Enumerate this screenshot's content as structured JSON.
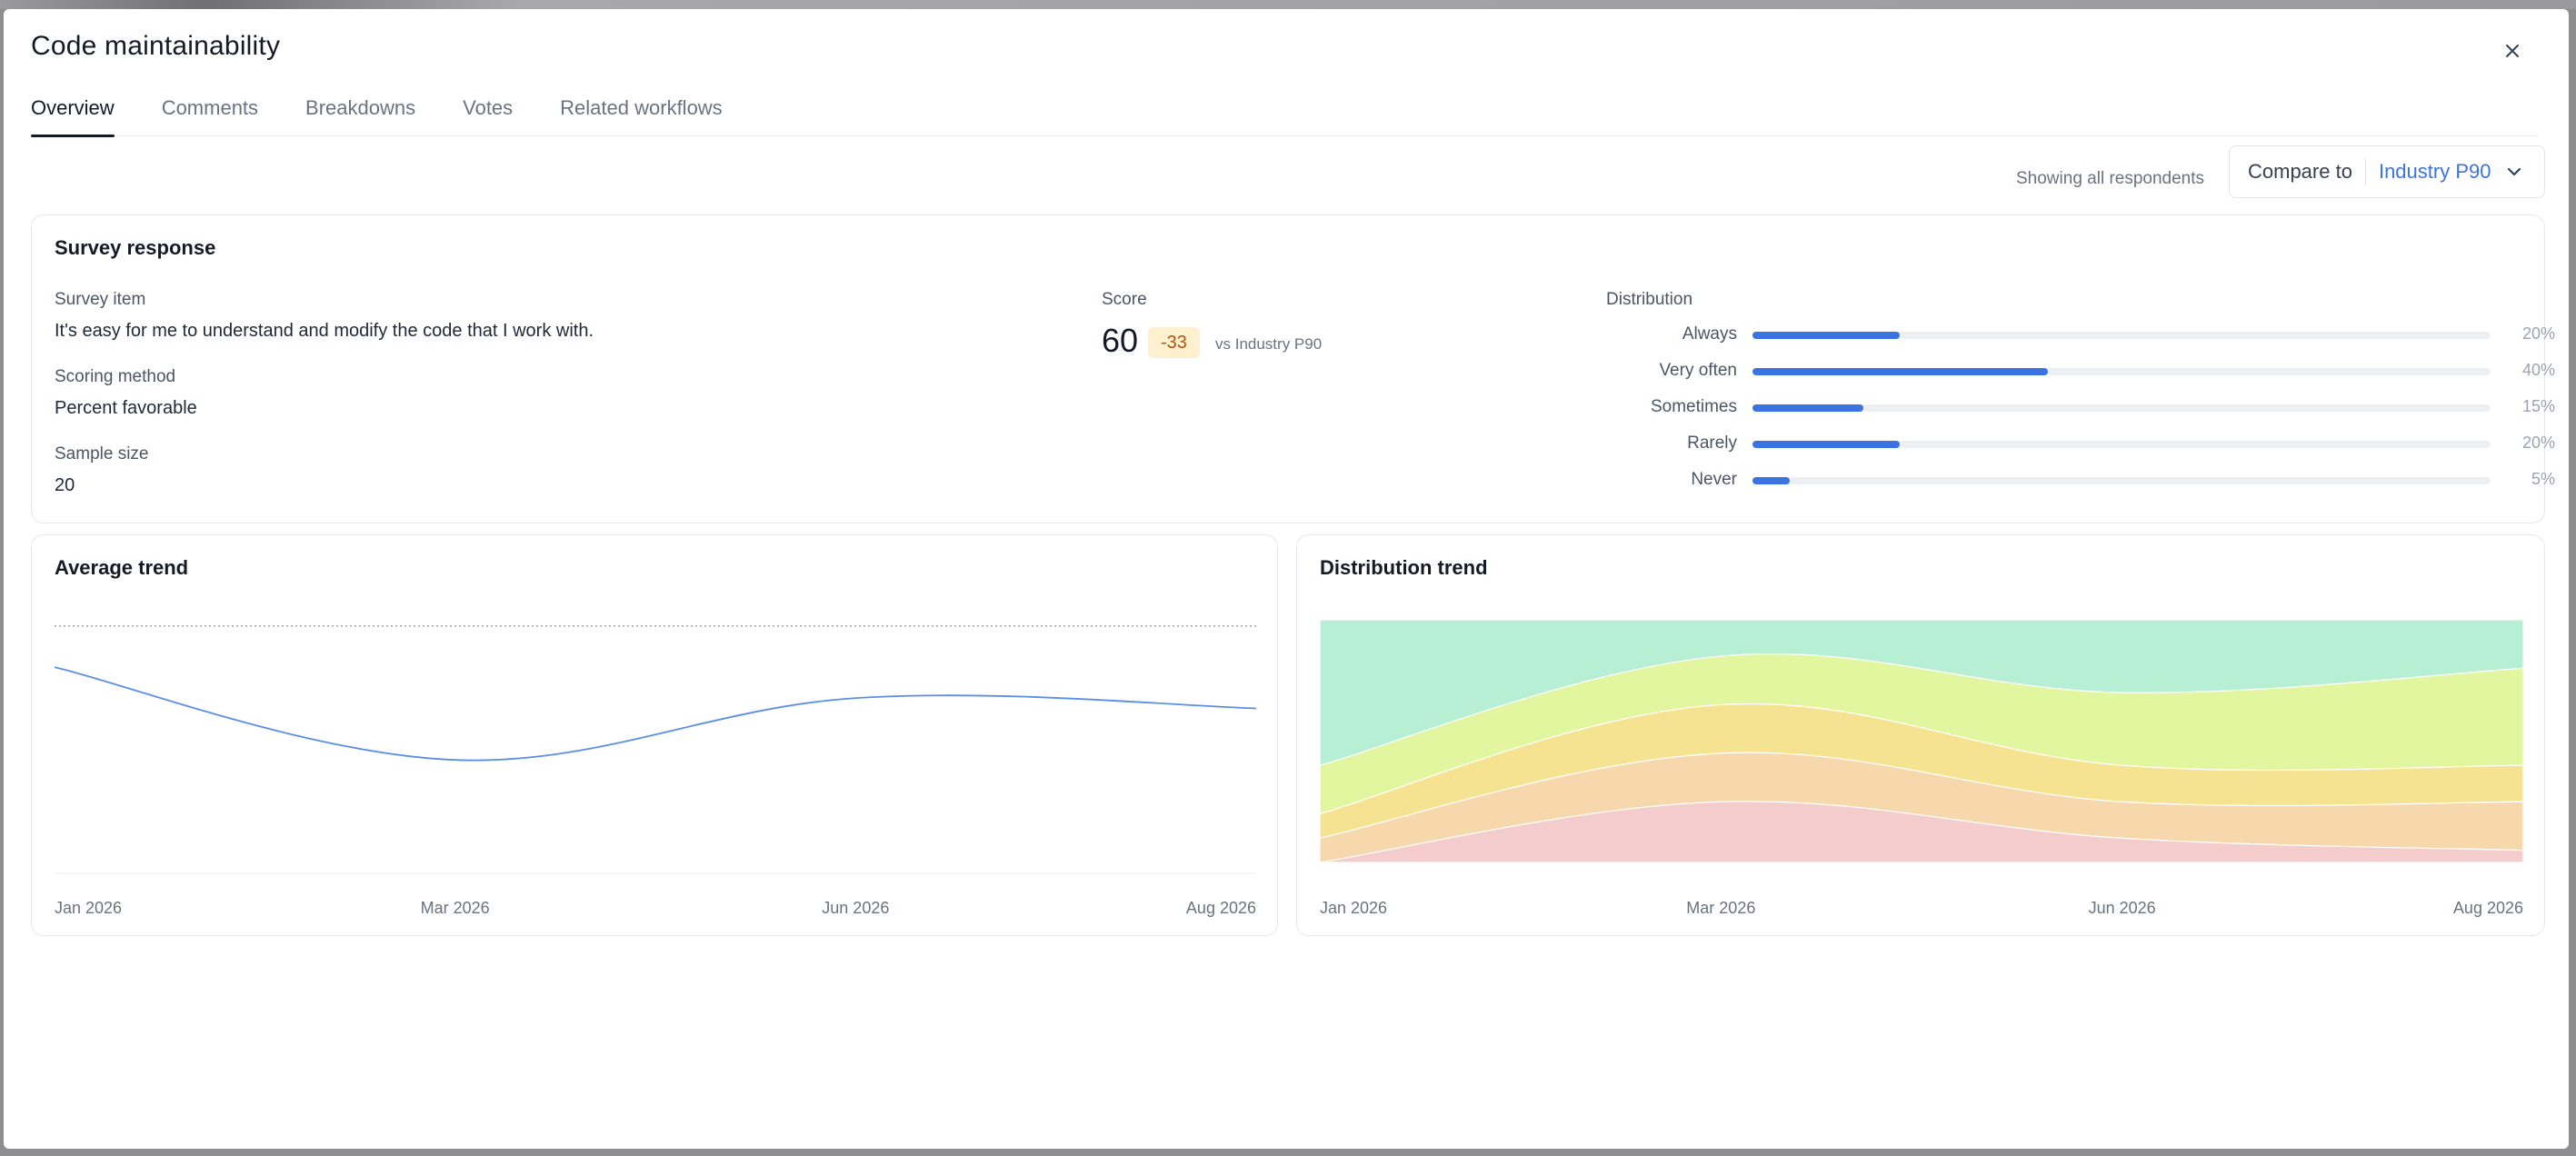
{
  "modal": {
    "title": "Code maintainability",
    "tabs": [
      {
        "label": "Overview",
        "active": true
      },
      {
        "label": "Comments",
        "active": false
      },
      {
        "label": "Breakdowns",
        "active": false
      },
      {
        "label": "Votes",
        "active": false
      },
      {
        "label": "Related workflows",
        "active": false
      }
    ],
    "respondents_text": "Showing all respondents",
    "compare": {
      "label": "Compare to",
      "value": "Industry P90"
    }
  },
  "survey_response": {
    "title": "Survey response",
    "survey_item_label": "Survey item",
    "survey_item_value": "It's easy for me to understand and modify the code that I work with.",
    "scoring_method_label": "Scoring method",
    "scoring_method_value": "Percent favorable",
    "sample_size_label": "Sample size",
    "sample_size_value": "20",
    "score_label": "Score",
    "score_value": "60",
    "score_delta": "-33",
    "score_vs": "vs Industry P90",
    "distribution_label": "Distribution",
    "distribution": [
      {
        "label": "Always",
        "percent": 20,
        "text": "20%"
      },
      {
        "label": "Very often",
        "percent": 40,
        "text": "40%"
      },
      {
        "label": "Sometimes",
        "percent": 15,
        "text": "15%"
      },
      {
        "label": "Rarely",
        "percent": 20,
        "text": "20%"
      },
      {
        "label": "Never",
        "percent": 5,
        "text": "5%"
      }
    ]
  },
  "colors": {
    "accent": "#3b74e0",
    "trend_line": "#5b8ee6",
    "benchmark_line": "#9ca3af",
    "dist_always": "#b6efd3",
    "dist_very_often": "#e2f6a0",
    "dist_sometimes": "#f6e391",
    "dist_rarely": "#f7d8ad",
    "dist_never": "#f5cccc"
  },
  "chart_data": [
    {
      "type": "line",
      "title": "Average trend",
      "x_ticks": [
        "Jan 2026",
        "Mar 2026",
        "Jun 2026",
        "Aug 2026"
      ],
      "x": [
        "Jan 2026",
        "Mar 2026",
        "Jun 2026",
        "Aug 2026"
      ],
      "series": [
        {
          "values": [
            80,
            44,
            68,
            64
          ]
        }
      ],
      "benchmark": 96,
      "ylim": [
        0,
        110
      ],
      "grid": false
    },
    {
      "type": "area",
      "title": "Distribution trend",
      "stacked": true,
      "normalized": true,
      "x_ticks": [
        "Jan 2026",
        "Mar 2026",
        "Jun 2026",
        "Aug 2026"
      ],
      "x": [
        "Jan 2026",
        "Mar 2026",
        "Jun 2026",
        "Aug 2026"
      ],
      "series": [
        {
          "key": "never",
          "values": [
            0,
            25,
            10,
            5
          ]
        },
        {
          "key": "rarely",
          "values": [
            10,
            20,
            15,
            20
          ]
        },
        {
          "key": "sometimes",
          "values": [
            10,
            20,
            15,
            15
          ]
        },
        {
          "key": "very_often",
          "values": [
            20,
            20,
            30,
            40
          ]
        },
        {
          "key": "always",
          "values": [
            60,
            15,
            30,
            20
          ]
        }
      ]
    }
  ]
}
